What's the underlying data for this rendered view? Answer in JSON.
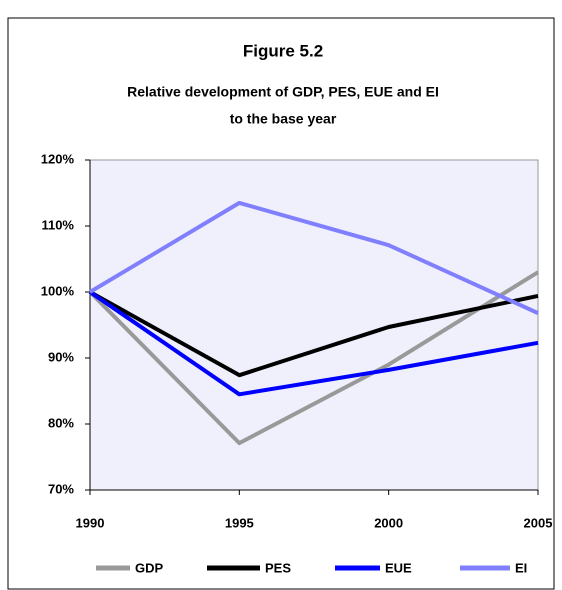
{
  "chart_data": {
    "type": "line",
    "title": "Figure 5.2",
    "subtitle": [
      "Relative development of GDP, PES, EUE and EI",
      "to the base year"
    ],
    "categories": [
      "1990",
      "1995",
      "2000",
      "2005"
    ],
    "series": [
      {
        "name": "GDP",
        "color": "#999999",
        "values": [
          100,
          77.1,
          89,
          103
        ]
      },
      {
        "name": "PES",
        "color": "#000000",
        "values": [
          100,
          87.4,
          94.7,
          99.4
        ]
      },
      {
        "name": "EUE",
        "color": "#0000ff",
        "values": [
          100,
          84.5,
          88.2,
          92.3
        ]
      },
      {
        "name": "EI",
        "color": "#8080ff",
        "values": [
          100,
          113.5,
          107.1,
          96.8
        ]
      }
    ],
    "ylim": [
      70,
      120
    ],
    "yticks": [
      {
        "value": 70,
        "label": "70%"
      },
      {
        "value": 80,
        "label": "80%"
      },
      {
        "value": 90,
        "label": "90%"
      },
      {
        "value": 100,
        "label": "100%"
      },
      {
        "value": 110,
        "label": "110%"
      },
      {
        "value": 120,
        "label": "120%"
      }
    ],
    "grid": false,
    "legend": "bottom"
  }
}
